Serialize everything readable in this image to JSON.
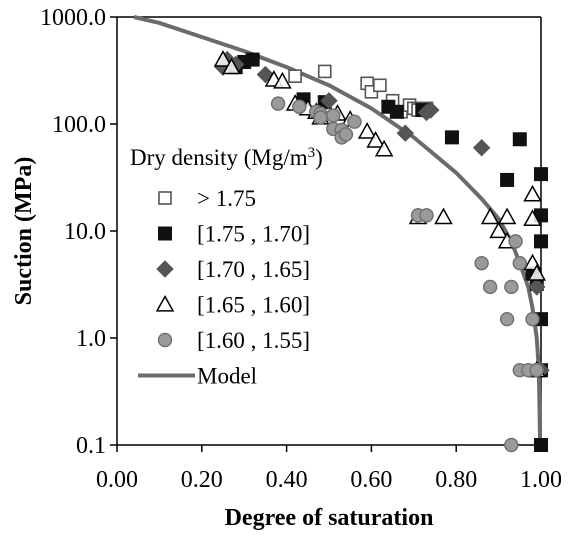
{
  "chart_data": {
    "type": "scatter",
    "xlabel": "Degree of saturation",
    "ylabel": "Suction (MPa)",
    "xlim": [
      0.0,
      1.0
    ],
    "ylim": [
      0.1,
      1000.0
    ],
    "y_scale": "log",
    "x_ticks": [
      "0.00",
      "0.20",
      "0.40",
      "0.60",
      "0.80",
      "1.00"
    ],
    "x_tick_values": [
      0.0,
      0.2,
      0.4,
      0.6,
      0.8,
      1.0
    ],
    "y_ticks": [
      "0.1",
      "1.0",
      "10.0",
      "100.0",
      "1000.0"
    ],
    "y_tick_values": [
      0.1,
      1.0,
      10.0,
      100.0,
      1000.0
    ],
    "grid": false,
    "legend": {
      "title_prefix": "Dry density (Mg/m",
      "title_sup": "3",
      "title_suffix": ")",
      "placement": "left"
    },
    "series": [
      {
        "name": "> 1.75",
        "marker": "square-open",
        "color": "#555555",
        "points": [
          [
            0.42,
            280
          ],
          [
            0.49,
            310
          ],
          [
            0.59,
            240
          ],
          [
            0.6,
            200
          ],
          [
            0.62,
            230
          ],
          [
            0.65,
            165
          ],
          [
            0.67,
            130
          ],
          [
            0.69,
            150
          ],
          [
            0.7,
            140
          ],
          [
            0.71,
            135
          ],
          [
            0.73,
            140
          ]
        ]
      },
      {
        "name": "[1.75 , 1.70]",
        "marker": "square-filled",
        "color": "#111111",
        "points": [
          [
            0.26,
            360
          ],
          [
            0.28,
            340
          ],
          [
            0.3,
            380
          ],
          [
            0.32,
            400
          ],
          [
            0.44,
            170
          ],
          [
            0.49,
            160
          ],
          [
            0.64,
            145
          ],
          [
            0.66,
            130
          ],
          [
            0.72,
            135
          ],
          [
            0.79,
            75
          ],
          [
            0.92,
            30
          ],
          [
            0.95,
            72
          ],
          [
            0.98,
            4
          ],
          [
            0.99,
            3.2
          ],
          [
            1.0,
            34
          ],
          [
            1.0,
            14
          ],
          [
            1.0,
            8
          ],
          [
            1.0,
            1.5
          ],
          [
            1.0,
            0.5
          ],
          [
            1.0,
            0.1
          ]
        ]
      },
      {
        "name": "[1.70 , 1.65]",
        "marker": "diamond",
        "color": "#555555",
        "points": [
          [
            0.25,
            340
          ],
          [
            0.26,
            400
          ],
          [
            0.28,
            360
          ],
          [
            0.35,
            290
          ],
          [
            0.5,
            165
          ],
          [
            0.68,
            82
          ],
          [
            0.73,
            128
          ],
          [
            0.74,
            135
          ],
          [
            0.86,
            60
          ],
          [
            0.99,
            3
          ],
          [
            1.0,
            0.5
          ]
        ]
      },
      {
        "name": "[1.65 , 1.60]",
        "marker": "triangle-open",
        "color": "#000000",
        "points": [
          [
            0.25,
            400
          ],
          [
            0.27,
            340
          ],
          [
            0.37,
            260
          ],
          [
            0.39,
            250
          ],
          [
            0.42,
            155
          ],
          [
            0.45,
            140
          ],
          [
            0.47,
            130
          ],
          [
            0.48,
            115
          ],
          [
            0.52,
            125
          ],
          [
            0.55,
            110
          ],
          [
            0.59,
            85
          ],
          [
            0.61,
            70
          ],
          [
            0.63,
            58
          ],
          [
            0.71,
            13.5
          ],
          [
            0.77,
            13.5
          ],
          [
            0.88,
            13.5
          ],
          [
            0.9,
            10
          ],
          [
            0.92,
            13.5
          ],
          [
            0.92,
            8
          ],
          [
            0.98,
            22
          ],
          [
            0.98,
            13
          ],
          [
            0.98,
            5
          ],
          [
            0.99,
            4
          ],
          [
            0.99,
            0.5
          ]
        ]
      },
      {
        "name": "[1.60 , 1.55]",
        "marker": "circle",
        "color": "#9a9a9a",
        "points": [
          [
            0.38,
            155
          ],
          [
            0.43,
            145
          ],
          [
            0.47,
            130
          ],
          [
            0.48,
            125
          ],
          [
            0.48,
            115
          ],
          [
            0.51,
            120
          ],
          [
            0.51,
            90
          ],
          [
            0.53,
            88
          ],
          [
            0.53,
            75
          ],
          [
            0.54,
            80
          ],
          [
            0.56,
            105
          ],
          [
            0.71,
            14
          ],
          [
            0.73,
            14
          ],
          [
            0.86,
            5
          ],
          [
            0.88,
            3
          ],
          [
            0.92,
            1.5
          ],
          [
            0.93,
            3
          ],
          [
            0.94,
            8
          ],
          [
            0.95,
            5
          ],
          [
            0.95,
            0.5
          ],
          [
            0.97,
            0.5
          ],
          [
            0.98,
            1.5
          ],
          [
            0.99,
            0.5
          ],
          [
            0.93,
            0.1
          ]
        ]
      }
    ],
    "model": {
      "name": "Model",
      "color": "#6b6b6b",
      "points": [
        [
          0.04,
          1000
        ],
        [
          0.1,
          880
        ],
        [
          0.2,
          650
        ],
        [
          0.3,
          480
        ],
        [
          0.4,
          340
        ],
        [
          0.5,
          230
        ],
        [
          0.6,
          140
        ],
        [
          0.7,
          75
        ],
        [
          0.8,
          35
        ],
        [
          0.86,
          20
        ],
        [
          0.9,
          13
        ],
        [
          0.93,
          8
        ],
        [
          0.95,
          5
        ],
        [
          0.97,
          3
        ],
        [
          0.98,
          1.9
        ],
        [
          0.99,
          1.0
        ],
        [
          0.995,
          0.5
        ],
        [
          0.998,
          0.1
        ]
      ]
    }
  }
}
